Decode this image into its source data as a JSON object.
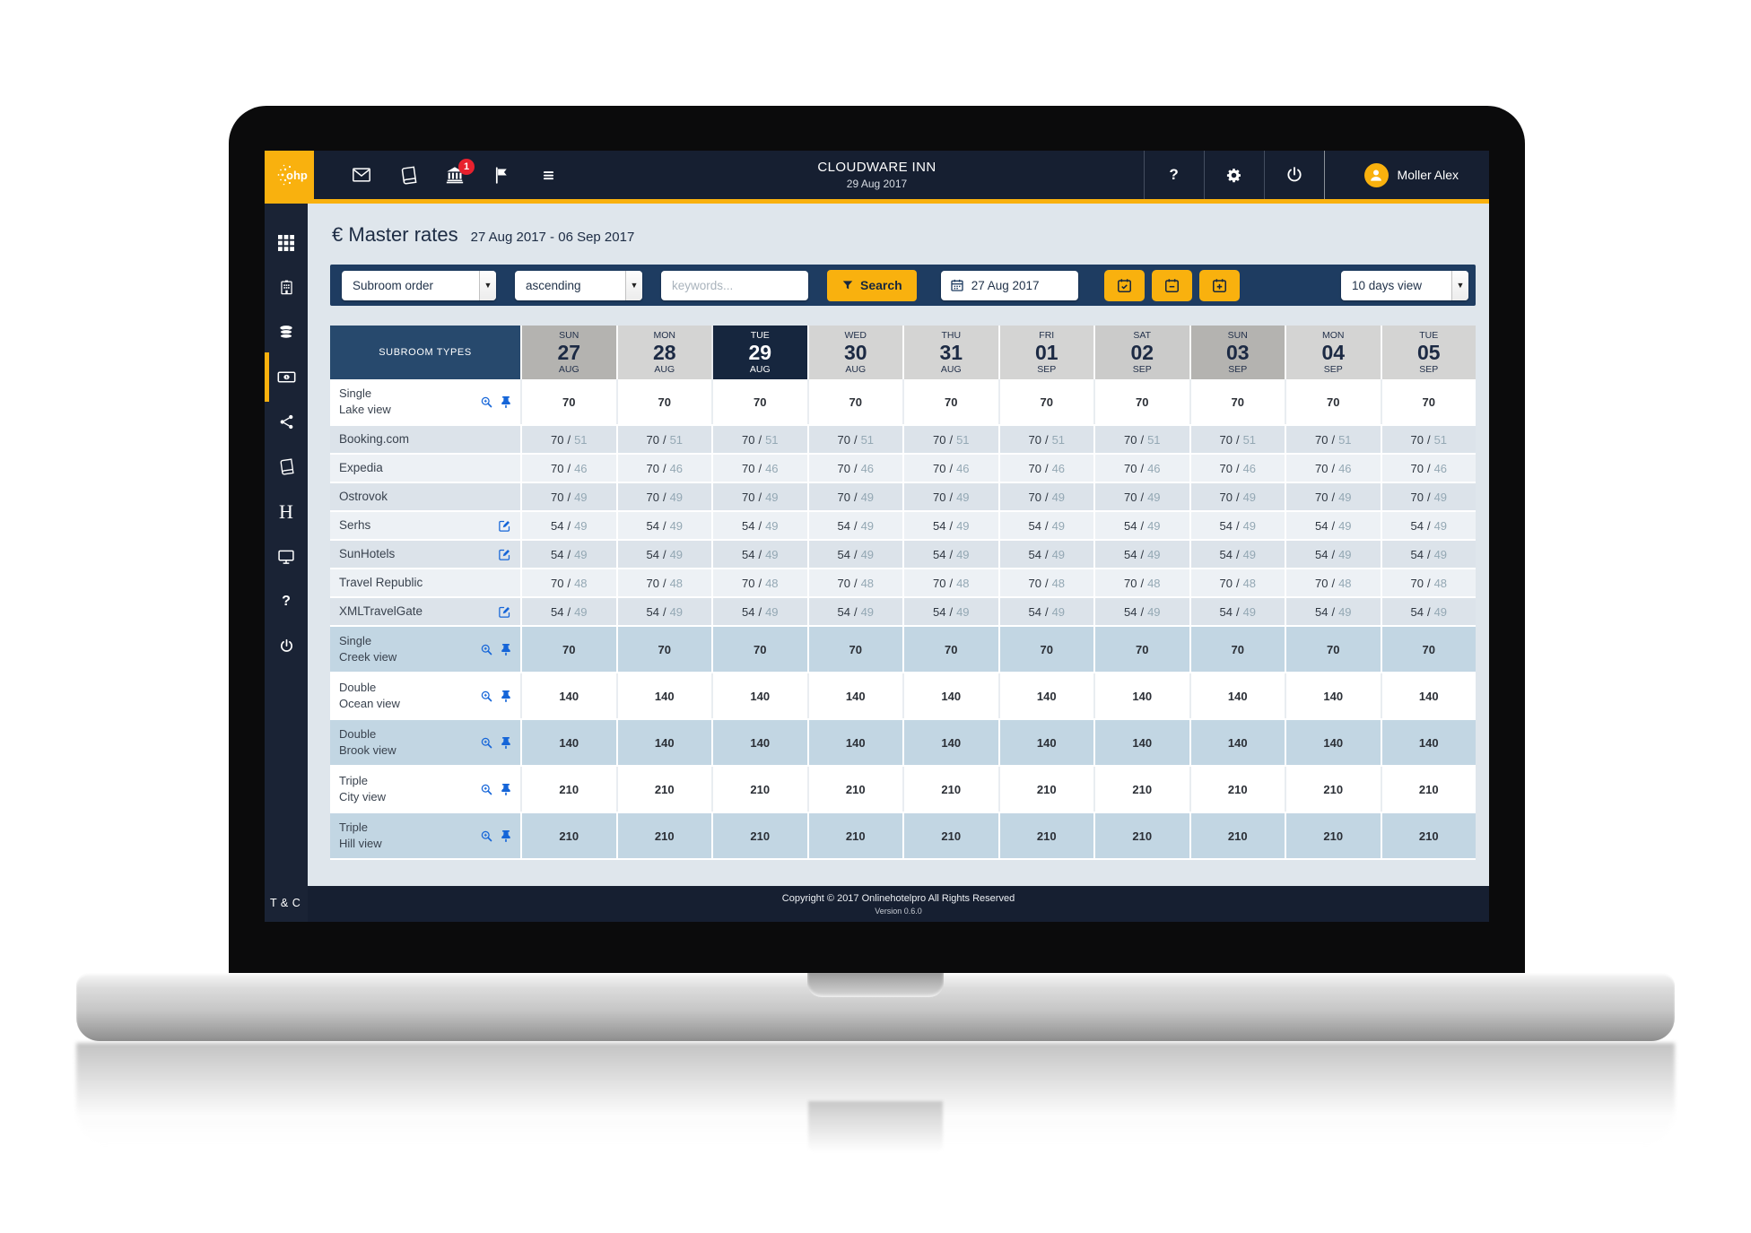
{
  "navbar": {
    "title": "CLOUDWARE INN",
    "date": "29 Aug 2017",
    "badge_count": "1",
    "user_name": "Moller Alex",
    "icons": [
      "mail-icon",
      "book-icon",
      "bank-icon",
      "flag-icon",
      "menu-icon",
      "help-icon",
      "gear-icon",
      "power-icon"
    ]
  },
  "sidebar": {
    "items": [
      "dashboard",
      "hotel",
      "database",
      "rates",
      "share",
      "bookings",
      "hotelpro",
      "monitor",
      "help",
      "power"
    ],
    "active_item": "rates",
    "tc_label": "T & C"
  },
  "page": {
    "currency": "€",
    "title": "Master rates",
    "date_range": "27 Aug 2017 - 06 Sep 2017"
  },
  "filters": {
    "subroom_order": "Subroom order",
    "direction": "ascending",
    "keywords_placeholder": "keywords...",
    "search_label": "Search",
    "date_value": "27 Aug 2017",
    "calendar_buttons": [
      "calendar-check-icon",
      "calendar-minus-icon",
      "calendar-plus-icon"
    ],
    "view_value": "10 days view"
  },
  "table": {
    "first_col_header": "SUBROOM TYPES",
    "columns": [
      {
        "dow": "SUN",
        "day": "27",
        "mon": "AUG",
        "type": "sunday"
      },
      {
        "dow": "MON",
        "day": "28",
        "mon": "AUG",
        "type": "weekday"
      },
      {
        "dow": "TUE",
        "day": "29",
        "mon": "AUG",
        "type": "today"
      },
      {
        "dow": "WED",
        "day": "30",
        "mon": "AUG",
        "type": "weekday"
      },
      {
        "dow": "THU",
        "day": "31",
        "mon": "AUG",
        "type": "weekday"
      },
      {
        "dow": "FRI",
        "day": "01",
        "mon": "SEP",
        "type": "weekday"
      },
      {
        "dow": "SAT",
        "day": "02",
        "mon": "SEP",
        "type": "saturday"
      },
      {
        "dow": "SUN",
        "day": "03",
        "mon": "SEP",
        "type": "sunday"
      },
      {
        "dow": "MON",
        "day": "04",
        "mon": "SEP",
        "type": "weekday"
      },
      {
        "dow": "TUE",
        "day": "05",
        "mon": "SEP",
        "type": "weekday"
      }
    ],
    "rows": [
      {
        "kind": "subroom",
        "name_line1": "Single",
        "name_line2": "Lake view",
        "icons": [
          "zoom",
          "pin"
        ],
        "value": "70",
        "shade": "white"
      },
      {
        "kind": "channel",
        "name": "Booking.com",
        "icons": [],
        "value": "70",
        "value2": "51",
        "shade": "dark"
      },
      {
        "kind": "channel",
        "name": "Expedia",
        "icons": [],
        "value": "70",
        "value2": "46",
        "shade": "light"
      },
      {
        "kind": "channel",
        "name": "Ostrovok",
        "icons": [],
        "value": "70",
        "value2": "49",
        "shade": "dark"
      },
      {
        "kind": "channel",
        "name": "Serhs",
        "icons": [
          "edit"
        ],
        "value": "54",
        "value2": "49",
        "shade": "light"
      },
      {
        "kind": "channel",
        "name": "SunHotels",
        "icons": [
          "edit"
        ],
        "value": "54",
        "value2": "49",
        "shade": "dark"
      },
      {
        "kind": "channel",
        "name": "Travel Republic",
        "icons": [],
        "value": "70",
        "value2": "48",
        "shade": "light"
      },
      {
        "kind": "channel",
        "name": "XMLTravelGate",
        "icons": [
          "edit"
        ],
        "value": "54",
        "value2": "49",
        "shade": "dark"
      },
      {
        "kind": "subroom",
        "name_line1": "Single",
        "name_line2": "Creek view",
        "icons": [
          "zoom",
          "pin"
        ],
        "value": "70",
        "shade": "blue"
      },
      {
        "kind": "subroom",
        "name_line1": "Double",
        "name_line2": "Ocean view",
        "icons": [
          "zoom",
          "pin"
        ],
        "value": "140",
        "shade": "white"
      },
      {
        "kind": "subroom",
        "name_line1": "Double",
        "name_line2": "Brook view",
        "icons": [
          "zoom",
          "pin"
        ],
        "value": "140",
        "shade": "blue"
      },
      {
        "kind": "subroom",
        "name_line1": "Triple",
        "name_line2": "City view",
        "icons": [
          "zoom",
          "pin"
        ],
        "value": "210",
        "shade": "white"
      },
      {
        "kind": "subroom",
        "name_line1": "Triple",
        "name_line2": "Hill view",
        "icons": [
          "zoom",
          "pin"
        ],
        "value": "210",
        "shade": "blue"
      }
    ]
  },
  "footer": {
    "copyright": "Copyright © 2017 Onlinehotelpro All Rights Reserved",
    "version": "Version 0.6.0"
  },
  "colors": {
    "accent_yellow": "#f9b10e",
    "navy_dark": "#161f31",
    "navy_filter": "#1e3c61",
    "navy_header": "#27496d",
    "today_bg": "#16263e",
    "sunday_bg": "#b4b3b0",
    "saturday_bg": "#cbcbca",
    "weekday_bg": "#d4d4d3",
    "row_blue": "#c2d6e3",
    "row_dark": "#dce3ea",
    "row_light": "#edf1f5",
    "badge_red": "#e8212e",
    "icon_blue": "#1565d8",
    "secondary_value": "#94a8b4"
  }
}
